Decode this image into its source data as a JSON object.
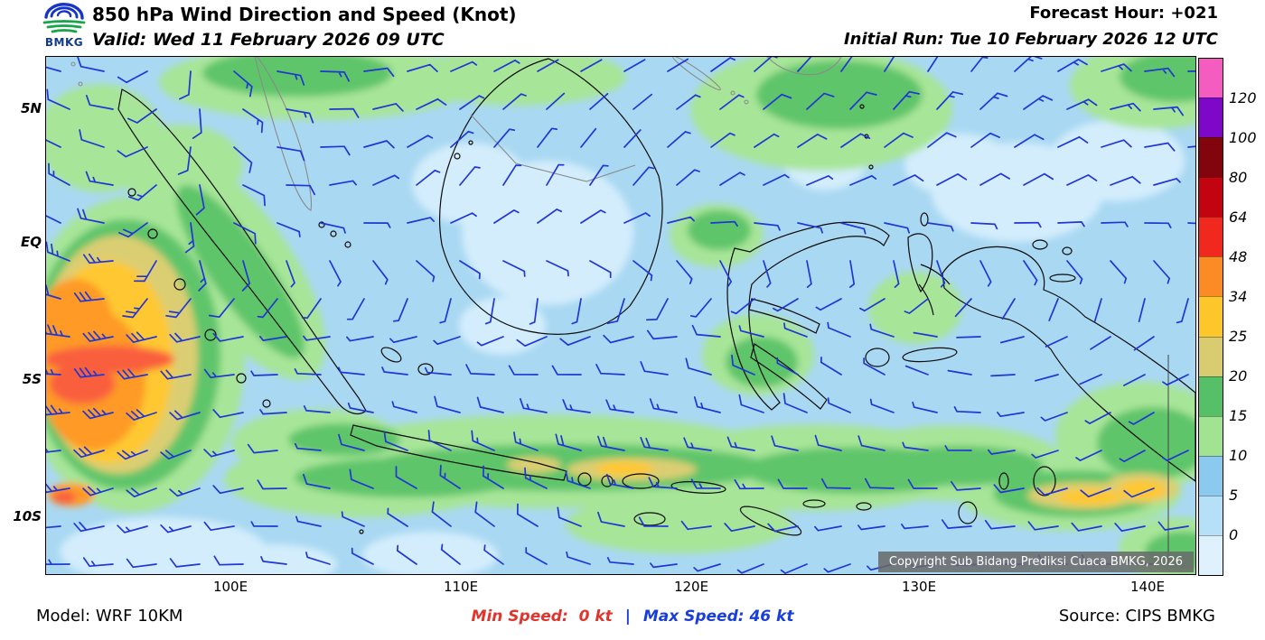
{
  "header": {
    "logo_text": "BMKG",
    "title": "850 hPa Wind Direction and Speed (Knot)",
    "valid_line": "Valid: Wed 11 February 2026 09 UTC",
    "forecast_hour": "Forecast Hour: +021",
    "initial_run": "Initial Run: Tue 10 February 2026 12 UTC"
  },
  "map": {
    "lat_labels": [
      "5N",
      "EQ",
      "5S",
      "10S"
    ],
    "lon_labels": [
      "100E",
      "110E",
      "120E",
      "130E",
      "140E"
    ],
    "copyright": "Copyright Sub Bidang Prediksi Cuaca BMKG, 2026"
  },
  "legend": {
    "colors": [
      "#f45cc0",
      "#7d08c8",
      "#82050e",
      "#c20410",
      "#f1281e",
      "#fb8b24",
      "#fdc62a",
      "#d9cb70",
      "#56c068",
      "#a2e392",
      "#8bcaee",
      "#b5e0f8",
      "#def1fd"
    ],
    "labels": [
      "120",
      "100",
      "80",
      "64",
      "48",
      "34",
      "25",
      "20",
      "15",
      "10",
      "5",
      "0"
    ]
  },
  "footer": {
    "model": "Model: WRF 10KM",
    "min_speed": "Min Speed:  0 kt",
    "separator": "|",
    "max_speed": "Max Speed: 46 kt",
    "source": "Source: CIPS BMKG"
  },
  "colors": {
    "barb": "#2136d4",
    "min_speed_text": "#e0342c",
    "max_speed_text": "#1a3fd9"
  }
}
